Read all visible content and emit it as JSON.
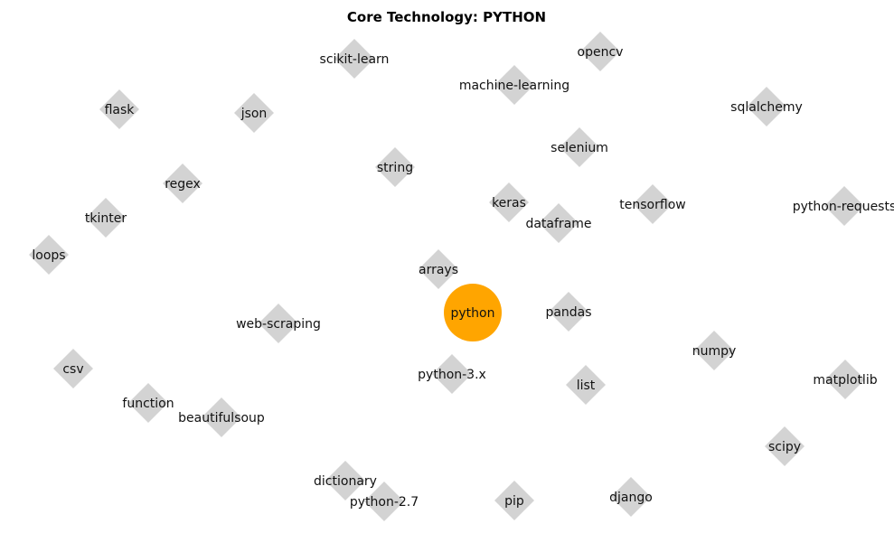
{
  "title": "Core Technology: PYTHON",
  "colors": {
    "center_node": "#FFA500",
    "peripheral_node": "#D3D3D3",
    "label": "#111111",
    "background": "#FFFFFF"
  },
  "graph": {
    "center": {
      "label": "python",
      "shape": "circle"
    },
    "peripheral_shape": "diamond",
    "nodes": [
      {
        "label": "scikit-learn"
      },
      {
        "label": "opencv"
      },
      {
        "label": "machine-learning"
      },
      {
        "label": "flask"
      },
      {
        "label": "json"
      },
      {
        "label": "sqlalchemy"
      },
      {
        "label": "selenium"
      },
      {
        "label": "string"
      },
      {
        "label": "regex"
      },
      {
        "label": "keras"
      },
      {
        "label": "tensorflow"
      },
      {
        "label": "tkinter"
      },
      {
        "label": "dataframe"
      },
      {
        "label": "python-requests"
      },
      {
        "label": "loops"
      },
      {
        "label": "arrays"
      },
      {
        "label": "pandas"
      },
      {
        "label": "web-scraping"
      },
      {
        "label": "numpy"
      },
      {
        "label": "csv"
      },
      {
        "label": "python-3.x"
      },
      {
        "label": "list"
      },
      {
        "label": "matplotlib"
      },
      {
        "label": "function"
      },
      {
        "label": "beautifulsoup"
      },
      {
        "label": "scipy"
      },
      {
        "label": "dictionary"
      },
      {
        "label": "python-2.7"
      },
      {
        "label": "pip"
      },
      {
        "label": "django"
      }
    ]
  }
}
